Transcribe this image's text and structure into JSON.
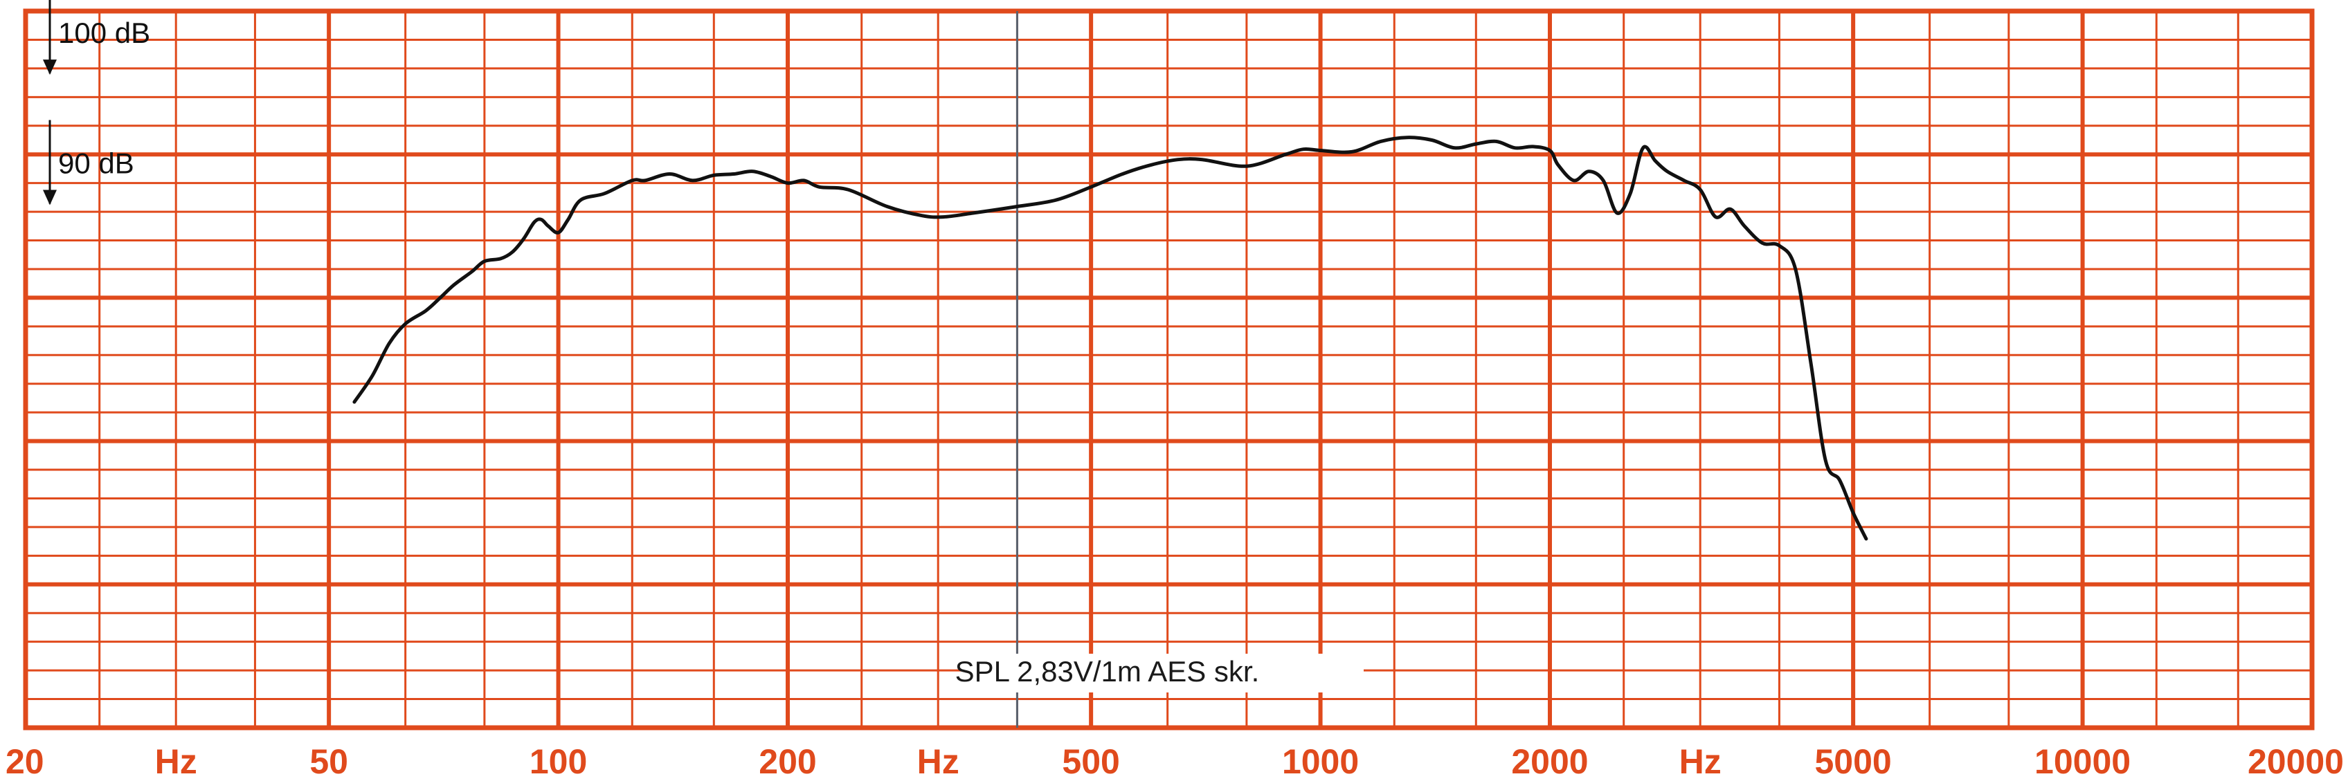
{
  "chart_data": {
    "type": "line",
    "x_scale": "log",
    "y_unit": "dB",
    "xlim": [
      20,
      20000
    ],
    "ylim": [
      50,
      105
    ],
    "grid": true,
    "tick_labels": [
      {
        "value": 20,
        "label": "20"
      },
      {
        "value": 31.5,
        "label": "Hz"
      },
      {
        "value": 50,
        "label": "50"
      },
      {
        "value": 100,
        "label": "100"
      },
      {
        "value": 200,
        "label": "200"
      },
      {
        "value": 315,
        "label": "Hz"
      },
      {
        "value": 500,
        "label": "500"
      },
      {
        "value": 1000,
        "label": "1000"
      },
      {
        "value": 2000,
        "label": "2000"
      },
      {
        "value": 3150,
        "label": "Hz"
      },
      {
        "value": 5000,
        "label": "5000"
      },
      {
        "value": 10000,
        "label": "10000"
      },
      {
        "value": 20000,
        "label": "20000"
      }
    ],
    "reference_levels": [
      {
        "value": 100,
        "label": "100 dB"
      },
      {
        "value": 90,
        "label": "90 dB"
      }
    ],
    "marker_frequency": 400,
    "annotation": "SPL  2,83V/1m   AES  skr.",
    "series": [
      {
        "color": "#111111",
        "points": [
          [
            54,
            75
          ],
          [
            57,
            77
          ],
          [
            60,
            79.5
          ],
          [
            63,
            81
          ],
          [
            67,
            82
          ],
          [
            70,
            83
          ],
          [
            73,
            84
          ],
          [
            77,
            85
          ],
          [
            80,
            85.8
          ],
          [
            84,
            86
          ],
          [
            87,
            86.5
          ],
          [
            90,
            87.5
          ],
          [
            93,
            88.8
          ],
          [
            95,
            89
          ],
          [
            97,
            88.5
          ],
          [
            100,
            88
          ],
          [
            103,
            89
          ],
          [
            107,
            90.5
          ],
          [
            115,
            91
          ],
          [
            125,
            92
          ],
          [
            130,
            92
          ],
          [
            140,
            92.5
          ],
          [
            150,
            92
          ],
          [
            160,
            92.4
          ],
          [
            170,
            92.5
          ],
          [
            180,
            92.7
          ],
          [
            190,
            92.3
          ],
          [
            200,
            91.8
          ],
          [
            210,
            92
          ],
          [
            220,
            91.5
          ],
          [
            240,
            91.3
          ],
          [
            270,
            90
          ],
          [
            300,
            89.3
          ],
          [
            320,
            89.2
          ],
          [
            350,
            89.5
          ],
          [
            400,
            90
          ],
          [
            450,
            90.5
          ],
          [
            500,
            91.5
          ],
          [
            550,
            92.5
          ],
          [
            600,
            93.2
          ],
          [
            650,
            93.6
          ],
          [
            700,
            93.6
          ],
          [
            800,
            93.1
          ],
          [
            900,
            94
          ],
          [
            950,
            94.4
          ],
          [
            1000,
            94.3
          ],
          [
            1100,
            94.2
          ],
          [
            1200,
            95
          ],
          [
            1300,
            95.3
          ],
          [
            1400,
            95.1
          ],
          [
            1500,
            94.5
          ],
          [
            1600,
            94.8
          ],
          [
            1700,
            95
          ],
          [
            1800,
            94.5
          ],
          [
            1900,
            94.6
          ],
          [
            2000,
            94.3
          ],
          [
            2050,
            93.2
          ],
          [
            2150,
            92
          ],
          [
            2250,
            92.7
          ],
          [
            2350,
            92
          ],
          [
            2450,
            89.5
          ],
          [
            2550,
            91
          ],
          [
            2650,
            94.5
          ],
          [
            2750,
            93.5
          ],
          [
            2850,
            92.7
          ],
          [
            3000,
            92
          ],
          [
            3150,
            91.3
          ],
          [
            3300,
            89.2
          ],
          [
            3450,
            89.8
          ],
          [
            3600,
            88.5
          ],
          [
            3800,
            87.2
          ],
          [
            4000,
            87
          ],
          [
            4200,
            85.2
          ],
          [
            4400,
            78
          ],
          [
            4600,
            70.5
          ],
          [
            4800,
            69
          ],
          [
            5000,
            66.5
          ],
          [
            5200,
            64.5
          ]
        ]
      }
    ]
  }
}
